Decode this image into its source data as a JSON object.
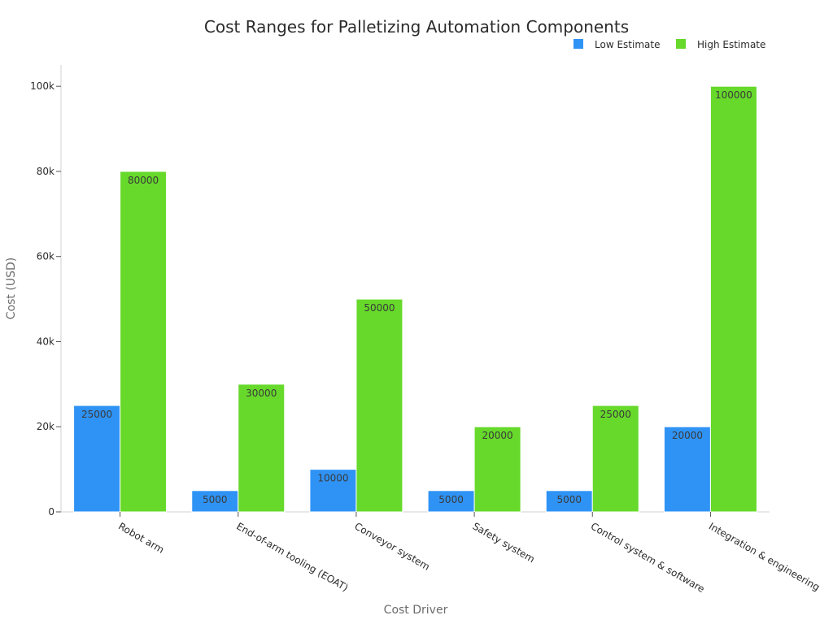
{
  "chart_data": {
    "type": "bar",
    "title": "Cost Ranges for Palletizing Automation Components",
    "xlabel": "Cost Driver",
    "ylabel": "Cost (USD)",
    "ylim": [
      0,
      105000
    ],
    "yticks": [
      0,
      20000,
      40000,
      60000,
      80000,
      100000
    ],
    "ytick_labels": [
      "0",
      "20k",
      "40k",
      "60k",
      "80k",
      "100k"
    ],
    "categories": [
      "Robot arm",
      "End-of-arm tooling (EOAT)",
      "Conveyor system",
      "Safety system",
      "Control system & software",
      "Integration & engineering"
    ],
    "series": [
      {
        "name": "Low Estimate",
        "values": [
          25000,
          5000,
          10000,
          5000,
          5000,
          20000
        ],
        "color": "#2f93f5"
      },
      {
        "name": "High Estimate",
        "values": [
          80000,
          30000,
          50000,
          20000,
          25000,
          100000
        ],
        "color": "#66d92a"
      }
    ],
    "legend": "top-right",
    "grid": false,
    "data_labels": true
  }
}
